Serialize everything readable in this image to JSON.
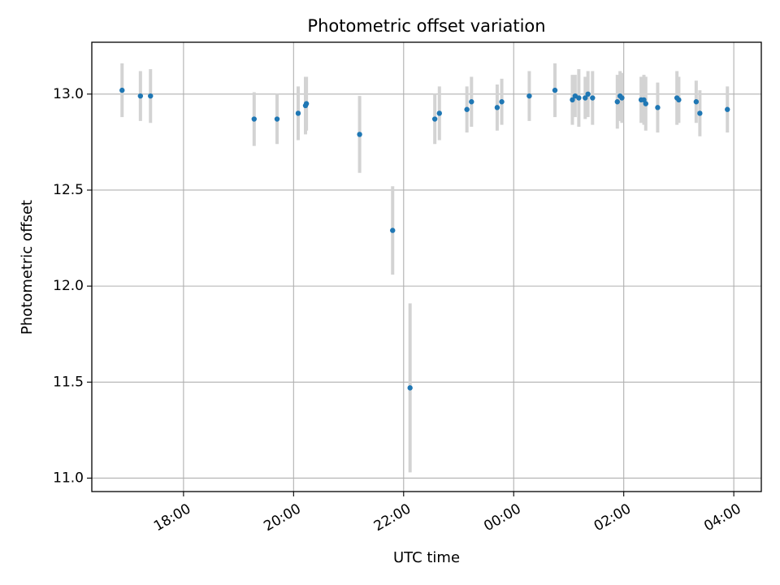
{
  "chart_data": {
    "type": "scatter",
    "title": "Photometric offset variation",
    "xlabel": "UTC time",
    "ylabel": "Photometric offset",
    "x_unit": "UTC time, continuing past midnight",
    "xlim": [
      "16:20",
      "28:30"
    ],
    "ylim": [
      10.93,
      13.27
    ],
    "grid": true,
    "x_ticks": [
      "18:00",
      "20:00",
      "22:00",
      "00:00",
      "02:00",
      "04:00"
    ],
    "y_ticks": [
      "11.0",
      "11.5",
      "12.0",
      "12.5",
      "13.0"
    ],
    "colors": {
      "marker": "#1f77b4",
      "errorbar": "#d3d3d3",
      "grid": "#b0b0b0"
    },
    "series": [
      {
        "points": [
          {
            "x": "16:53",
            "y": 13.02,
            "err": 0.14
          },
          {
            "x": "17:13",
            "y": 12.99,
            "err": 0.13
          },
          {
            "x": "17:24",
            "y": 12.99,
            "err": 0.14
          },
          {
            "x": "19:17",
            "y": 12.87,
            "err": 0.14
          },
          {
            "x": "19:42",
            "y": 12.87,
            "err": 0.13
          },
          {
            "x": "20:05",
            "y": 12.9,
            "err": 0.14
          },
          {
            "x": "20:13",
            "y": 12.94,
            "err": 0.15
          },
          {
            "x": "20:14",
            "y": 12.95,
            "err": 0.14
          },
          {
            "x": "21:12",
            "y": 12.79,
            "err": 0.2
          },
          {
            "x": "21:48",
            "y": 12.29,
            "err": 0.23
          },
          {
            "x": "22:07",
            "y": 11.47,
            "err": 0.44
          },
          {
            "x": "22:34",
            "y": 12.87,
            "err": 0.13
          },
          {
            "x": "22:39",
            "y": 12.9,
            "err": 0.14
          },
          {
            "x": "23:09",
            "y": 12.92,
            "err": 0.12
          },
          {
            "x": "23:14",
            "y": 12.96,
            "err": 0.13
          },
          {
            "x": "23:42",
            "y": 12.93,
            "err": 0.12
          },
          {
            "x": "23:47",
            "y": 12.96,
            "err": 0.12
          },
          {
            "x": "24:17",
            "y": 12.99,
            "err": 0.13
          },
          {
            "x": "24:45",
            "y": 13.02,
            "err": 0.14
          },
          {
            "x": "25:04",
            "y": 12.97,
            "err": 0.13
          },
          {
            "x": "25:07",
            "y": 12.99,
            "err": 0.11
          },
          {
            "x": "25:11",
            "y": 12.98,
            "err": 0.15
          },
          {
            "x": "25:18",
            "y": 12.98,
            "err": 0.11
          },
          {
            "x": "25:21",
            "y": 13.0,
            "err": 0.12
          },
          {
            "x": "25:26",
            "y": 12.98,
            "err": 0.14
          },
          {
            "x": "25:53",
            "y": 12.96,
            "err": 0.14
          },
          {
            "x": "25:56",
            "y": 12.99,
            "err": 0.13
          },
          {
            "x": "25:58",
            "y": 12.98,
            "err": 0.13
          },
          {
            "x": "26:19",
            "y": 12.97,
            "err": 0.12
          },
          {
            "x": "26:22",
            "y": 12.97,
            "err": 0.13
          },
          {
            "x": "26:24",
            "y": 12.95,
            "err": 0.14
          },
          {
            "x": "26:37",
            "y": 12.93,
            "err": 0.13
          },
          {
            "x": "26:58",
            "y": 12.98,
            "err": 0.14
          },
          {
            "x": "27:00",
            "y": 12.97,
            "err": 0.12
          },
          {
            "x": "27:19",
            "y": 12.96,
            "err": 0.11
          },
          {
            "x": "27:23",
            "y": 12.9,
            "err": 0.12
          },
          {
            "x": "27:53",
            "y": 12.92,
            "err": 0.12
          }
        ]
      }
    ]
  }
}
